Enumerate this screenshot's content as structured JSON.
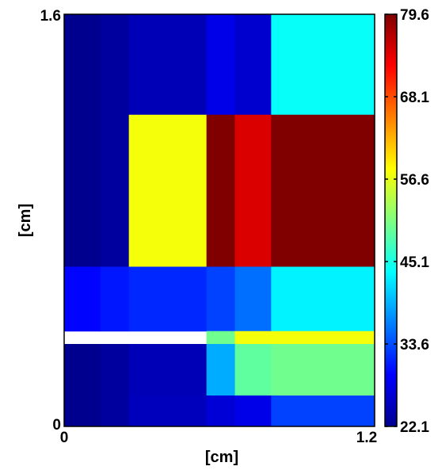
{
  "chart_data": {
    "type": "heatmap",
    "title": "",
    "xlabel": "[cm]",
    "ylabel": "[cm]",
    "xlim": [
      0,
      1.2
    ],
    "ylim": [
      0,
      1.6
    ],
    "x_ticks": [
      "0",
      "1.2"
    ],
    "y_ticks": [
      "0",
      "1.6"
    ],
    "colormap": "jet",
    "colorbar": {
      "min": 22.1,
      "max": 79.6,
      "ticks": [
        "22.1",
        "33.6",
        "45.1",
        "56.6",
        "68.1",
        "79.6"
      ]
    },
    "cells": [
      {
        "x0": 0.0,
        "x1": 0.14,
        "y0": 1.21,
        "y1": 1.6,
        "value": 23.0
      },
      {
        "x0": 0.14,
        "x1": 0.25,
        "y0": 1.21,
        "y1": 1.6,
        "value": 23.8
      },
      {
        "x0": 0.25,
        "x1": 0.55,
        "y0": 1.21,
        "y1": 1.6,
        "value": 25.2
      },
      {
        "x0": 0.55,
        "x1": 0.66,
        "y0": 1.21,
        "y1": 1.6,
        "value": 28.0
      },
      {
        "x0": 0.66,
        "x1": 0.8,
        "y0": 1.21,
        "y1": 1.6,
        "value": 26.5
      },
      {
        "x0": 0.8,
        "x1": 1.2,
        "y0": 1.21,
        "y1": 1.6,
        "value": 44.0
      },
      {
        "x0": 0.0,
        "x1": 0.14,
        "y0": 0.62,
        "y1": 1.21,
        "value": 23.0
      },
      {
        "x0": 0.14,
        "x1": 0.25,
        "y0": 0.62,
        "y1": 1.21,
        "value": 23.8
      },
      {
        "x0": 0.25,
        "x1": 0.55,
        "y0": 0.62,
        "y1": 1.21,
        "value": 57.5
      },
      {
        "x0": 0.55,
        "x1": 0.66,
        "y0": 0.62,
        "y1": 1.21,
        "value": 79.6
      },
      {
        "x0": 0.66,
        "x1": 0.8,
        "y0": 0.62,
        "y1": 1.21,
        "value": 74.5
      },
      {
        "x0": 0.8,
        "x1": 1.2,
        "y0": 0.62,
        "y1": 1.21,
        "value": 79.6
      },
      {
        "x0": 0.0,
        "x1": 0.14,
        "y0": 0.37,
        "y1": 0.62,
        "value": 29.5
      },
      {
        "x0": 0.14,
        "x1": 0.25,
        "y0": 0.37,
        "y1": 0.62,
        "value": 30.5
      },
      {
        "x0": 0.25,
        "x1": 0.55,
        "y0": 0.37,
        "y1": 0.62,
        "value": 31.5
      },
      {
        "x0": 0.55,
        "x1": 0.66,
        "y0": 0.37,
        "y1": 0.62,
        "value": 33.0
      },
      {
        "x0": 0.66,
        "x1": 0.8,
        "y0": 0.37,
        "y1": 0.62,
        "value": 35.5
      },
      {
        "x0": 0.8,
        "x1": 1.2,
        "y0": 0.37,
        "y1": 0.62,
        "value": 43.0
      },
      {
        "x0": 0.55,
        "x1": 0.66,
        "y0": 0.32,
        "y1": 0.37,
        "value": 50.0
      },
      {
        "x0": 0.66,
        "x1": 1.2,
        "y0": 0.32,
        "y1": 0.37,
        "value": 57.5
      },
      {
        "x0": 0.0,
        "x1": 0.14,
        "y0": 0.0,
        "y1": 0.32,
        "value": 23.0
      },
      {
        "x0": 0.14,
        "x1": 0.25,
        "y0": 0.0,
        "y1": 0.32,
        "value": 23.8
      },
      {
        "x0": 0.25,
        "x1": 0.55,
        "y0": 0.12,
        "y1": 0.32,
        "value": 25.2
      },
      {
        "x0": 0.55,
        "x1": 0.66,
        "y0": 0.12,
        "y1": 0.32,
        "value": 39.0
      },
      {
        "x0": 0.66,
        "x1": 0.8,
        "y0": 0.12,
        "y1": 0.32,
        "value": 49.0
      },
      {
        "x0": 0.8,
        "x1": 1.2,
        "y0": 0.12,
        "y1": 0.32,
        "value": 50.0
      },
      {
        "x0": 0.25,
        "x1": 0.55,
        "y0": 0.0,
        "y1": 0.12,
        "value": 25.5
      },
      {
        "x0": 0.55,
        "x1": 0.66,
        "y0": 0.0,
        "y1": 0.12,
        "value": 27.0
      },
      {
        "x0": 0.66,
        "x1": 0.8,
        "y0": 0.0,
        "y1": 0.12,
        "value": 28.0
      },
      {
        "x0": 0.8,
        "x1": 1.2,
        "y0": 0.0,
        "y1": 0.12,
        "value": 33.0
      }
    ]
  }
}
